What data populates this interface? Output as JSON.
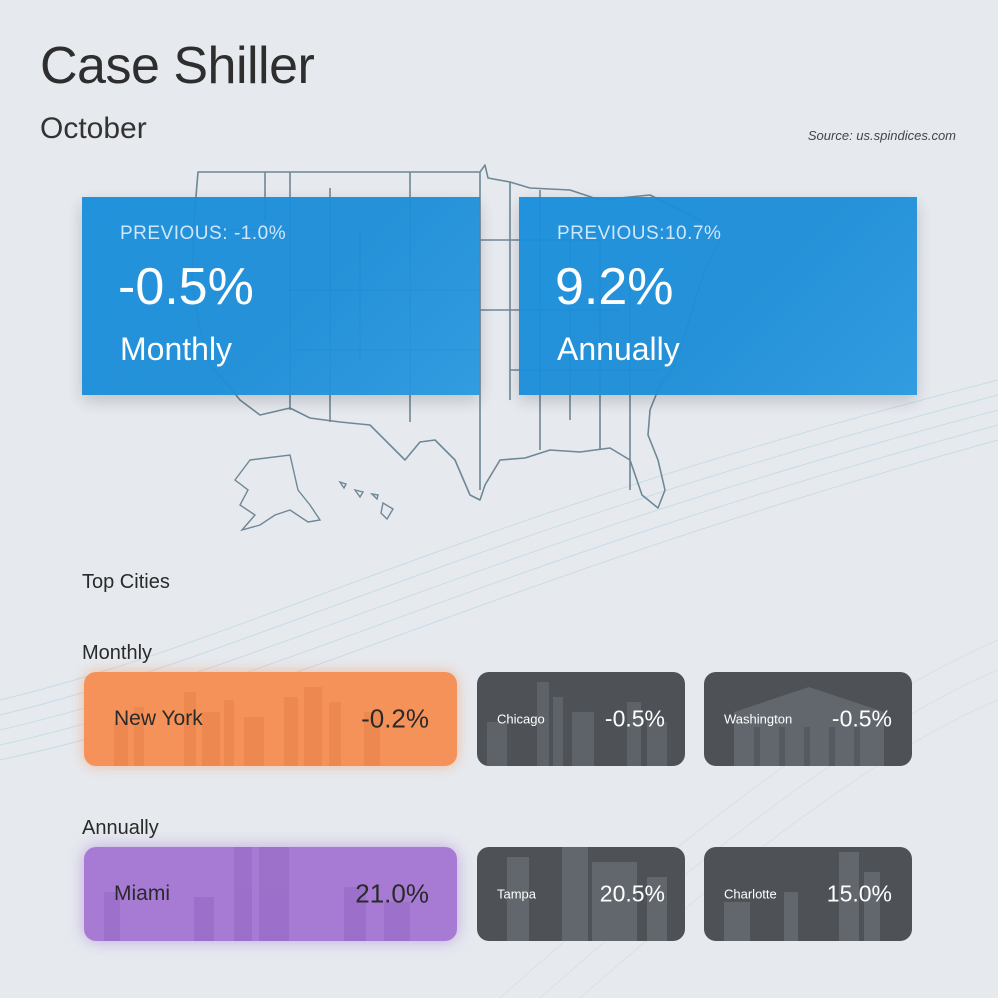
{
  "header": {
    "title": "Case Shiller",
    "subtitle": "October",
    "source": "Source: us.spindices.com"
  },
  "stats": [
    {
      "previous_label": "PREVIOUS:",
      "previous_value": "-1.0%",
      "value": "-0.5%",
      "period": "Monthly"
    },
    {
      "previous_label": "PREVIOUS:",
      "previous_value": "10.7%",
      "value": "9.2%",
      "period": "Annually"
    }
  ],
  "top_cities": {
    "heading": "Top Cities",
    "monthly": {
      "label": "Monthly",
      "cities": [
        {
          "name": "New York",
          "value": "-0.2%"
        },
        {
          "name": "Chicago",
          "value": "-0.5%"
        },
        {
          "name": "Washington",
          "value": "-0.5%"
        }
      ]
    },
    "annually": {
      "label": "Annually",
      "cities": [
        {
          "name": "Miami",
          "value": "21.0%"
        },
        {
          "name": "Tampa",
          "value": "20.5%"
        },
        {
          "name": "Charlotte",
          "value": "15.0%"
        }
      ]
    }
  },
  "colors": {
    "card_blue": "#1e8ed8",
    "top_monthly": "#f5925a",
    "top_annual": "#a77ad4",
    "city_tile": "#4e5257",
    "background": "#e6eaef"
  }
}
